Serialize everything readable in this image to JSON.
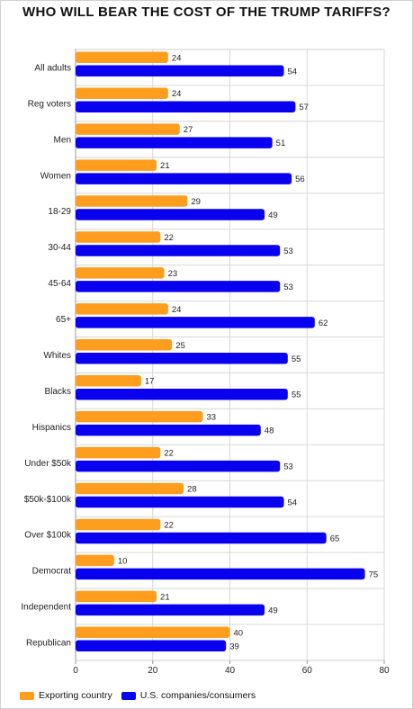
{
  "chart_data": {
    "type": "bar",
    "orientation": "horizontal",
    "title": "WHO WILL BEAR THE COST OF THE TRUMP TARIFFS?",
    "categories": [
      "All adults",
      "Reg voters",
      "Men",
      "Women",
      "18-29",
      "30-44",
      "45-64",
      "65+",
      "Whites",
      "Blacks",
      "Hispanics",
      "Under $50k",
      "$50k-$100k",
      "Over $100k",
      "Democrat",
      "Independent",
      "Republican"
    ],
    "series": [
      {
        "name": "Exporting country",
        "color": "#ff9d1e",
        "values": [
          24,
          24,
          27,
          21,
          29,
          22,
          23,
          24,
          25,
          17,
          33,
          22,
          28,
          22,
          10,
          21,
          40
        ]
      },
      {
        "name": "U.S. companies/consumers",
        "color": "#0a00f0",
        "values": [
          54,
          57,
          51,
          56,
          49,
          53,
          53,
          62,
          55,
          55,
          48,
          53,
          54,
          65,
          75,
          49,
          39
        ]
      }
    ],
    "xlim": [
      0,
      80
    ],
    "xticks": [
      0,
      20,
      40,
      60,
      80
    ],
    "grid": true,
    "legend_position": "bottom"
  }
}
